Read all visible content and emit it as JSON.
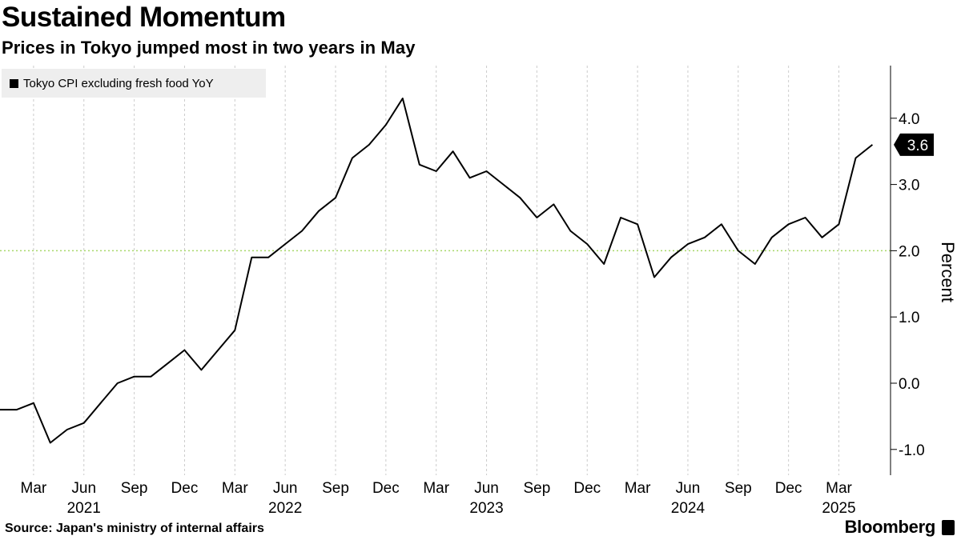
{
  "title": "Sustained Momentum",
  "subtitle": "Prices in Tokyo jumped most in two years in May",
  "source": "Source: Japan's ministry of internal affairs",
  "brand": "Bloomberg",
  "brand_icon": "bloomberg-terminal-icon",
  "colors": {
    "line": "#000000",
    "grid": "#cccccc",
    "reference": "#a8d86a",
    "legend_bg": "#eeeeee",
    "label_bg": "#000000"
  },
  "chart_data": {
    "type": "line",
    "title": "Sustained Momentum",
    "subtitle": "Prices in Tokyo jumped most in two years in May",
    "ylabel": "Percent",
    "xlabel": "",
    "ylim": [
      -1.4,
      4.8
    ],
    "yticks": [
      -1.0,
      0.0,
      1.0,
      2.0,
      3.0,
      4.0
    ],
    "ytick_labels": [
      "-1.0",
      "0.0",
      "1.0",
      "2.0",
      "3.0",
      "4.0"
    ],
    "y_axis_side": "right",
    "grid": "vertical dashed at quarter starts",
    "reference_line": 2.0,
    "legend": [
      "Tokyo CPI excluding fresh food YoY"
    ],
    "legend_position": "top-left",
    "x_start": "2021-01",
    "x_ticks": [
      "Mar",
      "Jun",
      "Sep",
      "Dec",
      "Mar",
      "Jun",
      "Sep",
      "Dec",
      "Mar",
      "Jun",
      "Sep",
      "Dec",
      "Mar",
      "Jun",
      "Sep",
      "Dec",
      "Mar"
    ],
    "x_tick_months": [
      "2021-03",
      "2021-06",
      "2021-09",
      "2021-12",
      "2022-03",
      "2022-06",
      "2022-09",
      "2022-12",
      "2023-03",
      "2023-06",
      "2023-09",
      "2023-12",
      "2024-03",
      "2024-06",
      "2024-09",
      "2024-12",
      "2025-03"
    ],
    "years": [
      "2021",
      "2022",
      "2023",
      "2024",
      "2025"
    ],
    "year_months": [
      "2021-06",
      "2022-06",
      "2023-06",
      "2024-06",
      "2025-03"
    ],
    "last_value_label": "3.6",
    "series": [
      {
        "name": "Tokyo CPI excluding fresh food YoY",
        "x": [
          "2021-01",
          "2021-02",
          "2021-03",
          "2021-04",
          "2021-05",
          "2021-06",
          "2021-07",
          "2021-08",
          "2021-09",
          "2021-10",
          "2021-11",
          "2021-12",
          "2022-01",
          "2022-02",
          "2022-03",
          "2022-04",
          "2022-05",
          "2022-06",
          "2022-07",
          "2022-08",
          "2022-09",
          "2022-10",
          "2022-11",
          "2022-12",
          "2023-01",
          "2023-02",
          "2023-03",
          "2023-04",
          "2023-05",
          "2023-06",
          "2023-07",
          "2023-08",
          "2023-09",
          "2023-10",
          "2023-11",
          "2023-12",
          "2024-01",
          "2024-02",
          "2024-03",
          "2024-04",
          "2024-05",
          "2024-06",
          "2024-07",
          "2024-08",
          "2024-09",
          "2024-10",
          "2024-11",
          "2024-12",
          "2025-01",
          "2025-02",
          "2025-03",
          "2025-04",
          "2025-05"
        ],
        "values": [
          -0.4,
          -0.4,
          -0.3,
          -0.9,
          -0.7,
          -0.6,
          -0.3,
          0.0,
          0.1,
          0.1,
          0.3,
          0.5,
          0.2,
          0.5,
          0.8,
          1.9,
          1.9,
          2.1,
          2.3,
          2.6,
          2.8,
          3.4,
          3.6,
          3.9,
          4.3,
          3.3,
          3.2,
          3.5,
          3.1,
          3.2,
          3.0,
          2.8,
          2.5,
          2.7,
          2.3,
          2.1,
          1.8,
          2.5,
          2.4,
          1.6,
          1.9,
          2.1,
          2.2,
          2.4,
          2.0,
          1.8,
          2.2,
          2.4,
          2.5,
          2.2,
          2.4,
          3.4,
          3.6
        ]
      }
    ]
  }
}
